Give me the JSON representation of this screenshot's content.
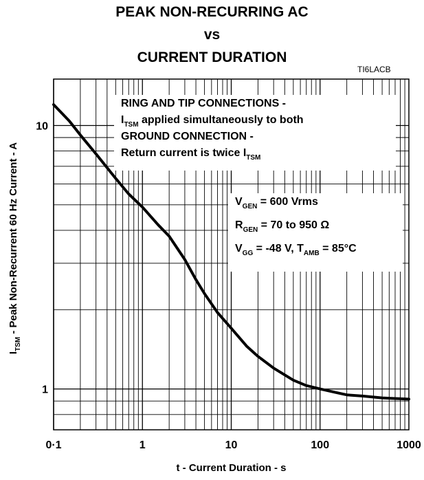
{
  "chart_data": {
    "type": "line",
    "title": [
      "PEAK NON-RECURRING AC",
      "vs",
      "CURRENT DURATION"
    ],
    "figure_code": "TI6LACB",
    "xlabel": "t - Current Duration - s",
    "ylabel": {
      "symbol": "I",
      "symbol_sub": "TSM",
      "text": " -  Peak  Non-Recurrent 60 Hz Current  - A"
    },
    "x_scale": "log",
    "y_scale": "log",
    "xlim": [
      0.1,
      1000
    ],
    "ylim": [
      0.7,
      15
    ],
    "x_ticks": [
      {
        "value": 0.1,
        "label": "0·1"
      },
      {
        "value": 1,
        "label": "1"
      },
      {
        "value": 10,
        "label": "10"
      },
      {
        "value": 100,
        "label": "100"
      },
      {
        "value": 1000,
        "label": "1000"
      }
    ],
    "y_ticks": [
      {
        "value": 1,
        "label": "1"
      },
      {
        "value": 10,
        "label": "10"
      }
    ],
    "grid": true,
    "series": [
      {
        "x": [
          0.1,
          0.15,
          0.2,
          0.3,
          0.5,
          0.7,
          1,
          1.5,
          2,
          3,
          4,
          5,
          7,
          10,
          15,
          20,
          30,
          50,
          70,
          100,
          150,
          200,
          300,
          500,
          700,
          1000
        ],
        "y": [
          12,
          10.4,
          9.2,
          7.8,
          6.3,
          5.5,
          4.9,
          4.2,
          3.8,
          3.1,
          2.6,
          2.3,
          1.95,
          1.7,
          1.45,
          1.33,
          1.2,
          1.08,
          1.03,
          1.0,
          0.97,
          0.95,
          0.94,
          0.925,
          0.92,
          0.915
        ]
      }
    ],
    "annotations": {
      "box1": [
        {
          "pre": "RING AND TIP CONNECTIONS -",
          "sub": "",
          "post": ""
        },
        {
          "pre": "I",
          "sub": "TSM",
          "post": " applied simultaneously to both"
        },
        {
          "pre": "GROUND CONNECTION -",
          "sub": "",
          "post": ""
        },
        {
          "pre": "Return current is twice I",
          "sub": "TSM",
          "post": ""
        }
      ],
      "box2": [
        {
          "pre": "V",
          "sub": "GEN",
          "post": " = 600 Vrms"
        },
        {
          "pre": "R",
          "sub": "GEN",
          "post": " = 70 to 950 Ω"
        },
        {
          "pre": "V",
          "sub": "GG",
          "post": " = -48 V, T",
          "sub2": "AMB",
          "post2": " = 85°C"
        }
      ]
    }
  }
}
